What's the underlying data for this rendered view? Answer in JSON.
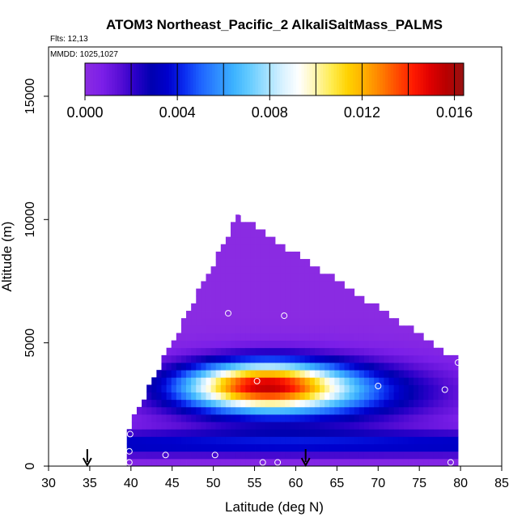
{
  "chart_data": {
    "type": "heatmap",
    "title": "ATOM3 Northeast_Pacific_2 AlkaliSaltMass_PALMS",
    "flights_note": "Flts: 12,13",
    "mmdd_note": "MMDD: 1025,1027",
    "xlabel": "Latitude (deg N)",
    "ylabel": "Altitude (m)",
    "xlim": [
      30,
      85
    ],
    "ylim": [
      0,
      17000
    ],
    "x_ticks": [
      "30",
      "35",
      "40",
      "45",
      "50",
      "55",
      "60",
      "65",
      "70",
      "75",
      "80",
      "85"
    ],
    "y_ticks": [
      "0",
      "5000",
      "10000",
      "15000"
    ],
    "colorbar": {
      "min": 0.0,
      "max": 0.0164,
      "tick_labels": [
        "0.000",
        "0.004",
        "0.008",
        "0.012",
        "0.016"
      ],
      "tick_values": [
        0.0,
        0.004,
        0.008,
        0.012,
        0.016
      ],
      "colors": [
        "#8a2be2",
        "#7b1fe8",
        "#5a0fd6",
        "#2a00c8",
        "#0000b0",
        "#0000cd",
        "#0a2cf0",
        "#1e64ff",
        "#2f8cff",
        "#3cb2ff",
        "#66ccff",
        "#a0e0ff",
        "#d8f2ff",
        "#ffffff",
        "#fff6b0",
        "#ffec50",
        "#ffd200",
        "#ffae00",
        "#ff8000",
        "#ff4c00",
        "#ff1a00",
        "#e00000",
        "#b80000",
        "#9a1010"
      ]
    },
    "cells": {
      "lat_bins": [
        39.5,
        80
      ],
      "note": "gridded curtain of mean mass by latitude/altitude"
    },
    "flight_markers": [
      {
        "lat": 34.7,
        "alt": 0
      },
      {
        "lat": 61.2,
        "alt": 0
      }
    ],
    "sample_points": [
      [
        53.4,
        10300
      ],
      [
        51.8,
        6200
      ],
      [
        58.6,
        6100
      ],
      [
        55.3,
        3450
      ],
      [
        70.0,
        3250
      ],
      [
        78.1,
        3100
      ],
      [
        79.7,
        4200
      ],
      [
        39.9,
        1300
      ],
      [
        39.8,
        600
      ],
      [
        39.8,
        150
      ],
      [
        44.2,
        450
      ],
      [
        50.2,
        450
      ],
      [
        56.0,
        150
      ],
      [
        57.8,
        150
      ],
      [
        78.8,
        150
      ]
    ]
  }
}
